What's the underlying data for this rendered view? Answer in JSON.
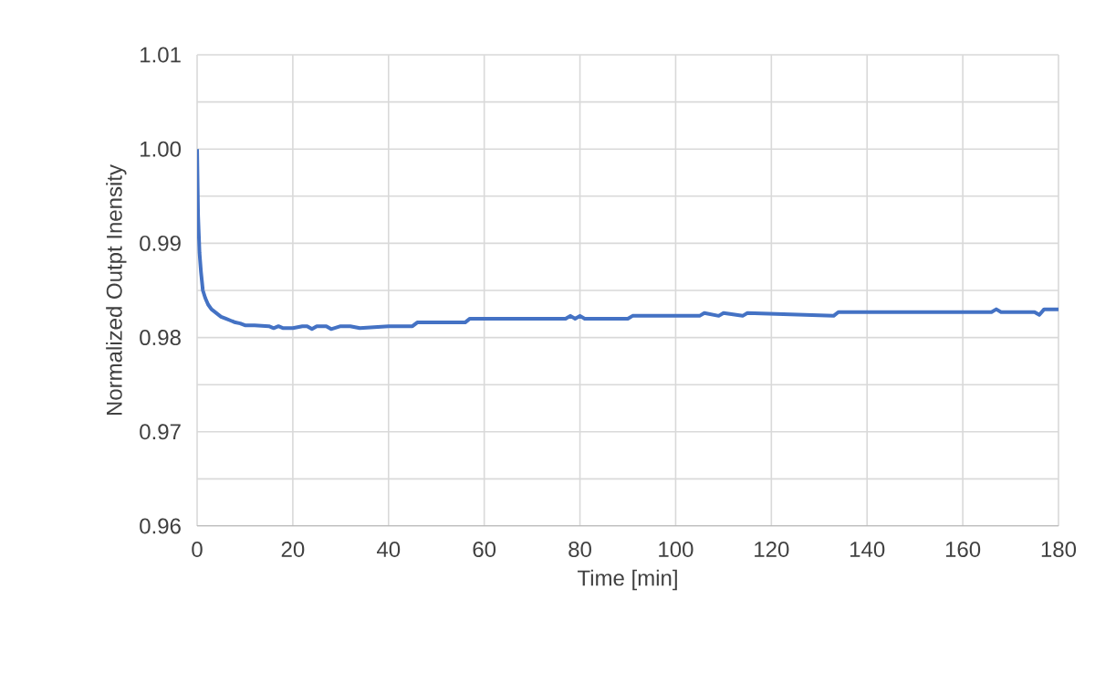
{
  "chart_data": {
    "type": "line",
    "xlabel": "Time [min]",
    "ylabel": "Normalized Outpt Inensity",
    "xlim": [
      0,
      180
    ],
    "ylim": [
      0.96,
      1.01
    ],
    "xticks": [
      0,
      20,
      40,
      60,
      80,
      100,
      120,
      140,
      160,
      180
    ],
    "yticks": [
      {
        "value": 0.96,
        "label": "0.96"
      },
      {
        "value": 0.965,
        "label": null
      },
      {
        "value": 0.97,
        "label": "0.97"
      },
      {
        "value": 0.975,
        "label": null
      },
      {
        "value": 0.98,
        "label": "0.98"
      },
      {
        "value": 0.985,
        "label": null
      },
      {
        "value": 0.99,
        "label": "0.99"
      },
      {
        "value": 0.995,
        "label": null
      },
      {
        "value": 1.0,
        "label": "1.00"
      },
      {
        "value": 1.005,
        "label": null
      },
      {
        "value": 1.01,
        "label": "1.01"
      }
    ],
    "grid": true,
    "marker": "none",
    "line_style": "solid",
    "series": [
      {
        "color": "#4472c4",
        "x": [
          0,
          0.2,
          0.5,
          0.8,
          1.2,
          1.7,
          2.3,
          3,
          4,
          5,
          6,
          7,
          8,
          9,
          10,
          12,
          15,
          16,
          17,
          18,
          20,
          22,
          23,
          24,
          25,
          27,
          28,
          30,
          32,
          34,
          40,
          45,
          46,
          56,
          57,
          77,
          78,
          79,
          80,
          81,
          90,
          91,
          105,
          106,
          109,
          110,
          114,
          115,
          133,
          134,
          166,
          167,
          168,
          170,
          175,
          176,
          177,
          180
        ],
        "values": [
          1.0,
          0.993,
          0.989,
          0.987,
          0.985,
          0.9842,
          0.9835,
          0.983,
          0.9826,
          0.9822,
          0.982,
          0.9818,
          0.9816,
          0.9815,
          0.9813,
          0.9813,
          0.9812,
          0.981,
          0.9812,
          0.981,
          0.981,
          0.9812,
          0.9812,
          0.9809,
          0.9812,
          0.9812,
          0.9809,
          0.9812,
          0.9812,
          0.981,
          0.9812,
          0.9812,
          0.9816,
          0.9816,
          0.982,
          0.982,
          0.9823,
          0.982,
          0.9823,
          0.982,
          0.982,
          0.9823,
          0.9823,
          0.9826,
          0.9823,
          0.9826,
          0.9823,
          0.9826,
          0.9823,
          0.9827,
          0.9827,
          0.983,
          0.9827,
          0.9827,
          0.9827,
          0.9824,
          0.983,
          0.983
        ]
      }
    ]
  }
}
